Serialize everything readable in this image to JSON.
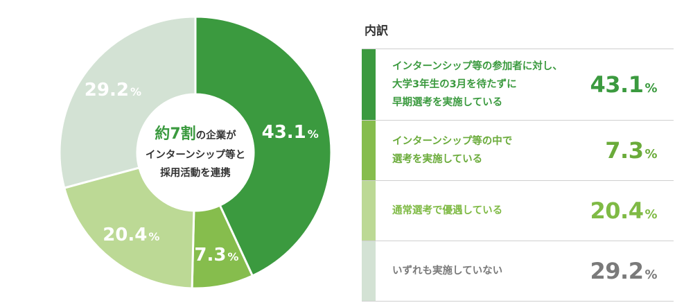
{
  "chart_data": {
    "type": "pie",
    "categories": [
      "インターンシップ等の参加者に対し、大学3年生の3月を待たずに早期選考を実施している",
      "インターンシップ等の中で選考を実施している",
      "通常選考で優遇している",
      "いずれも実施していない"
    ],
    "values": [
      43.1,
      7.3,
      20.4,
      29.2
    ],
    "unit": "%",
    "colors": [
      "#3b9a3f",
      "#86bd4d",
      "#bcd995",
      "#d3e2d4"
    ],
    "center_text": {
      "highlight": "約7割",
      "line1_rest": "の企業が",
      "line2": "インターンシップ等と",
      "line3": "採用活動を連携"
    },
    "title": "",
    "legend_title": "内訳"
  },
  "legend": {
    "items": [
      {
        "lines": [
          "インターンシップ等の参加者に対し、",
          "大学3年生の3月を待たずに",
          "早期選考を実施している"
        ],
        "value": "43.1",
        "pct": "%",
        "color": "#3b9a3f",
        "text_color": "#3b9a3f"
      },
      {
        "lines": [
          "インターンシップ等の中で",
          "選考を実施している"
        ],
        "value": "7.3",
        "pct": "%",
        "color": "#86bd4d",
        "text_color": "#6aab3a"
      },
      {
        "lines": [
          "通常選考で優遇している"
        ],
        "value": "20.4",
        "pct": "%",
        "color": "#bcd995",
        "text_color": "#7fba45"
      },
      {
        "lines": [
          "いずれも実施していない"
        ],
        "value": "29.2",
        "pct": "%",
        "color": "#d3e2d4",
        "text_color": "#7a7a7a"
      }
    ]
  }
}
